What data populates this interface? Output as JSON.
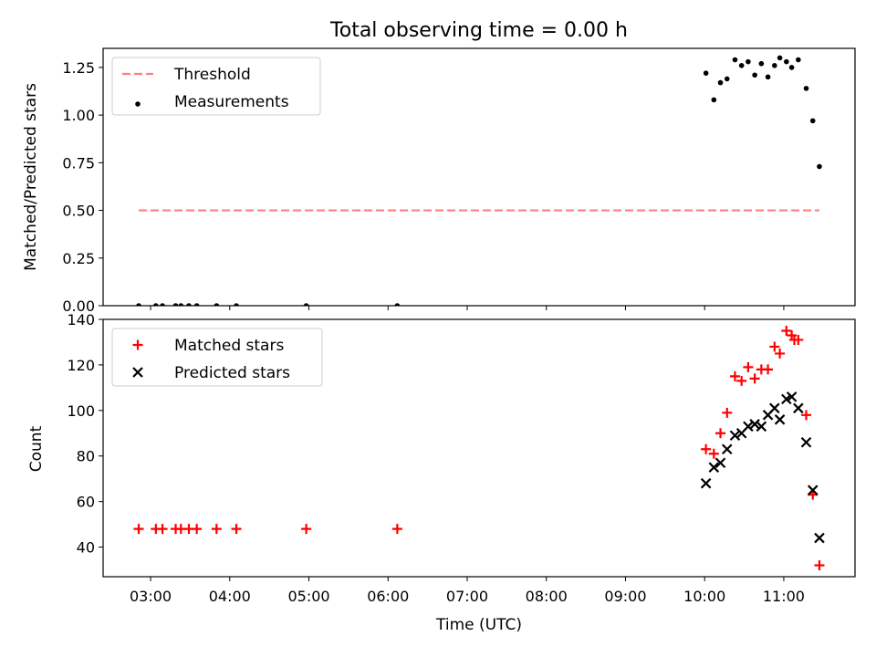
{
  "chart_data": [
    {
      "type": "scatter",
      "title": "Total observing time = 0.00 h",
      "ylabel": "Matched/Predicted stars",
      "xlabel": "",
      "xlim": [
        "02:24",
        "11:54"
      ],
      "ylim": [
        0,
        1.35
      ],
      "yticks": [
        {
          "v": 0.0,
          "label": "0.00"
        },
        {
          "v": 0.25,
          "label": "0.25"
        },
        {
          "v": 0.5,
          "label": "0.50"
        },
        {
          "v": 0.75,
          "label": "0.75"
        },
        {
          "v": 1.0,
          "label": "1.00"
        },
        {
          "v": 1.25,
          "label": "1.25"
        }
      ],
      "legend_position": "top-left",
      "legend": [
        "Threshold",
        "Measurements"
      ],
      "series": [
        {
          "name": "Threshold",
          "kind": "dashed-line",
          "color": "#ff7f7f",
          "points": [
            [
              "02:51",
              0.5
            ],
            [
              "11:27",
              0.5
            ]
          ]
        },
        {
          "name": "Measurements",
          "kind": "dot",
          "color": "#000000",
          "points": [
            [
              "02:51",
              0.0
            ],
            [
              "03:04",
              0.0
            ],
            [
              "03:09",
              0.0
            ],
            [
              "03:19",
              0.0
            ],
            [
              "03:23",
              0.0
            ],
            [
              "03:29",
              0.0
            ],
            [
              "03:35",
              0.0
            ],
            [
              "03:50",
              0.0
            ],
            [
              "04:05",
              0.0
            ],
            [
              "04:58",
              0.0
            ],
            [
              "06:07",
              0.0
            ],
            [
              "10:01",
              1.22
            ],
            [
              "10:07",
              1.08
            ],
            [
              "10:12",
              1.17
            ],
            [
              "10:17",
              1.19
            ],
            [
              "10:23",
              1.29
            ],
            [
              "10:28",
              1.26
            ],
            [
              "10:33",
              1.28
            ],
            [
              "10:38",
              1.21
            ],
            [
              "10:43",
              1.27
            ],
            [
              "10:48",
              1.2
            ],
            [
              "10:53",
              1.26
            ],
            [
              "10:57",
              1.3
            ],
            [
              "11:02",
              1.28
            ],
            [
              "11:06",
              1.25
            ],
            [
              "11:11",
              1.29
            ],
            [
              "11:17",
              1.14
            ],
            [
              "11:22",
              0.97
            ],
            [
              "11:27",
              0.73
            ]
          ]
        }
      ]
    },
    {
      "type": "scatter",
      "title": "",
      "xlabel": "Time (UTC)",
      "ylabel": "Count",
      "xlim": [
        "02:24",
        "11:54"
      ],
      "ylim": [
        27,
        140
      ],
      "xticks": [
        {
          "v": "03:00",
          "label": "03:00"
        },
        {
          "v": "04:00",
          "label": "04:00"
        },
        {
          "v": "05:00",
          "label": "05:00"
        },
        {
          "v": "06:00",
          "label": "06:00"
        },
        {
          "v": "07:00",
          "label": "07:00"
        },
        {
          "v": "08:00",
          "label": "08:00"
        },
        {
          "v": "09:00",
          "label": "09:00"
        },
        {
          "v": "10:00",
          "label": "10:00"
        },
        {
          "v": "11:00",
          "label": "11:00"
        }
      ],
      "yticks": [
        {
          "v": 40,
          "label": "40"
        },
        {
          "v": 60,
          "label": "60"
        },
        {
          "v": 80,
          "label": "80"
        },
        {
          "v": 100,
          "label": "100"
        },
        {
          "v": 120,
          "label": "120"
        },
        {
          "v": 140,
          "label": "140"
        }
      ],
      "legend_position": "top-left",
      "legend": [
        "Matched stars",
        "Predicted stars"
      ],
      "series": [
        {
          "name": "Matched stars",
          "kind": "plus",
          "color": "#ff0000",
          "points": [
            [
              "02:51",
              48
            ],
            [
              "03:04",
              48
            ],
            [
              "03:09",
              48
            ],
            [
              "03:19",
              48
            ],
            [
              "03:23",
              48
            ],
            [
              "03:29",
              48
            ],
            [
              "03:35",
              48
            ],
            [
              "03:50",
              48
            ],
            [
              "04:05",
              48
            ],
            [
              "04:58",
              48
            ],
            [
              "06:07",
              48
            ],
            [
              "10:01",
              83
            ],
            [
              "10:07",
              81
            ],
            [
              "10:12",
              90
            ],
            [
              "10:17",
              99
            ],
            [
              "10:23",
              115
            ],
            [
              "10:28",
              113
            ],
            [
              "10:33",
              119
            ],
            [
              "10:38",
              114
            ],
            [
              "10:43",
              118
            ],
            [
              "10:48",
              118
            ],
            [
              "10:53",
              128
            ],
            [
              "10:57",
              125
            ],
            [
              "11:02",
              135
            ],
            [
              "11:06",
              133
            ],
            [
              "11:08",
              131
            ],
            [
              "11:11",
              131
            ],
            [
              "11:17",
              98
            ],
            [
              "11:22",
              63
            ],
            [
              "11:27",
              32
            ]
          ]
        },
        {
          "name": "Predicted stars",
          "kind": "x",
          "color": "#000000",
          "points": [
            [
              "10:01",
              68
            ],
            [
              "10:07",
              75
            ],
            [
              "10:12",
              77
            ],
            [
              "10:17",
              83
            ],
            [
              "10:23",
              89
            ],
            [
              "10:28",
              90
            ],
            [
              "10:33",
              93
            ],
            [
              "10:38",
              94
            ],
            [
              "10:43",
              93
            ],
            [
              "10:48",
              98
            ],
            [
              "10:53",
              101
            ],
            [
              "10:57",
              96
            ],
            [
              "11:02",
              105
            ],
            [
              "11:06",
              106
            ],
            [
              "11:11",
              101
            ],
            [
              "11:17",
              86
            ],
            [
              "11:22",
              65
            ],
            [
              "11:27",
              44
            ]
          ]
        }
      ]
    }
  ]
}
